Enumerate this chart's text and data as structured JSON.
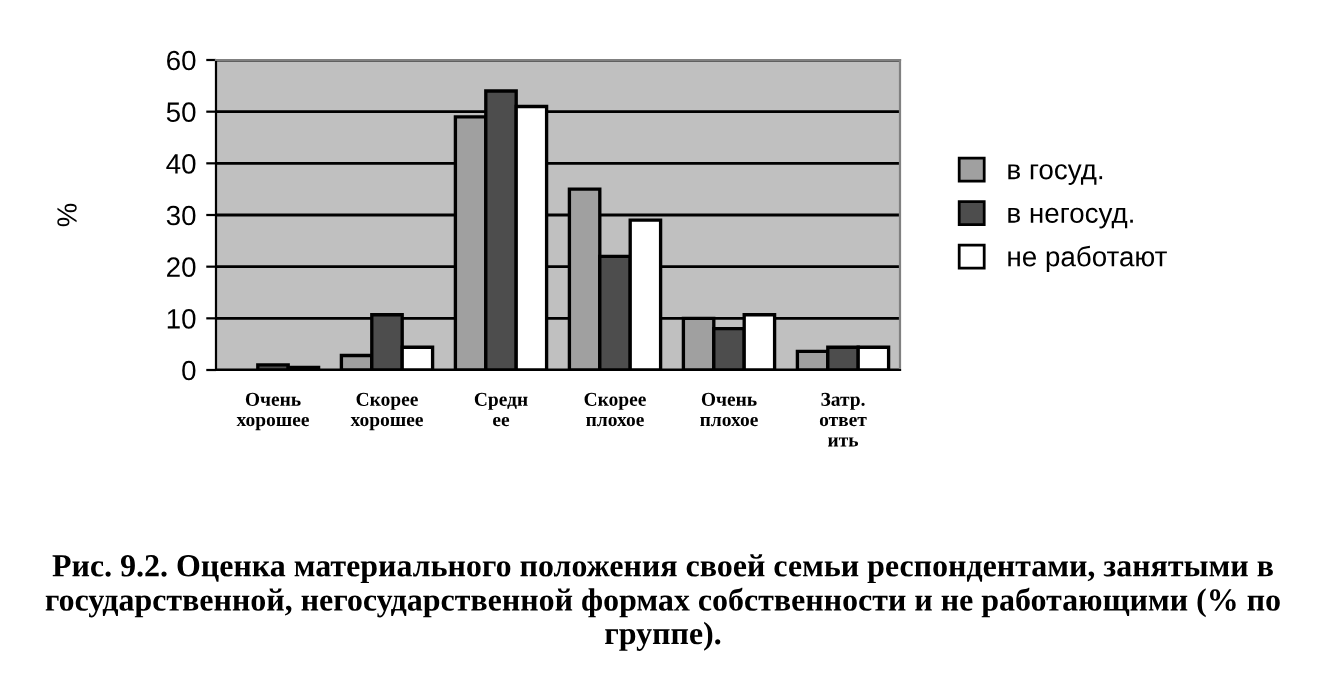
{
  "chart_data": {
    "type": "bar",
    "categories": [
      "Очень\nхорошее",
      "Скорее\nхорошее",
      "Средн\nее",
      "Скорее\nплохое",
      "Очень\nплохое",
      "Затр.\nответ\nить"
    ],
    "series": [
      {
        "name": "в госуд.",
        "color": "#a0a0a0",
        "values": [
          null,
          2.8,
          49,
          35,
          10,
          3.6
        ]
      },
      {
        "name": "в негосуд.",
        "color": "#4d4d4d",
        "values": [
          1,
          10.7,
          54,
          22,
          8,
          4.4
        ]
      },
      {
        "name": "не работают",
        "color": "#ffffff",
        "values": [
          0.5,
          4.4,
          51,
          29,
          10.7,
          4.4
        ]
      }
    ],
    "ylabel": "%",
    "ylim": [
      0,
      60
    ],
    "yticks": [
      0,
      10,
      20,
      30,
      40,
      50,
      60
    ],
    "grid": "y",
    "legend": "right",
    "annotations": [
      "Рис. 9.2. Оценка материального положения своей семьи респондентами, занятыми в государственной, негосударственной формах собственности и не работающими (% по группе)."
    ]
  }
}
